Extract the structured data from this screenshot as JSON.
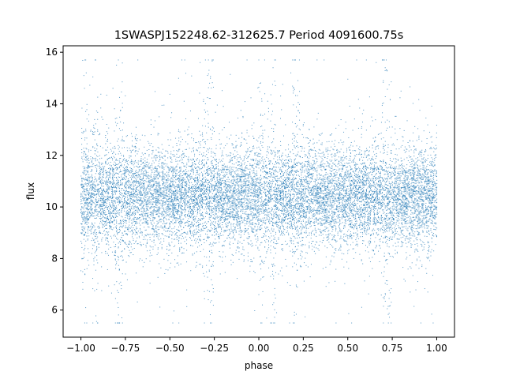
{
  "chart_data": {
    "type": "scatter",
    "title": "1SWASPJ152248.62-312625.7 Period 4091600.75s",
    "xlabel": "phase",
    "ylabel": "flux",
    "xlim": [
      -1.1,
      1.1
    ],
    "ylim": [
      4.95,
      16.25
    ],
    "xticks": [
      -1.0,
      -0.75,
      -0.5,
      -0.25,
      0.0,
      0.25,
      0.5,
      0.75,
      1.0
    ],
    "xtick_labels": [
      "−1.00",
      "−0.75",
      "−0.50",
      "−0.25",
      "0.00",
      "0.25",
      "0.50",
      "0.75",
      "1.00"
    ],
    "yticks": [
      6,
      8,
      10,
      12,
      14,
      16
    ],
    "ytick_labels": [
      "6",
      "8",
      "10",
      "12",
      "14",
      "16"
    ],
    "grid": false,
    "legend": "none",
    "marker_color": "#1f77b4",
    "series": [
      {
        "name": "",
        "description_of_density": "dense band of points",
        "x_range": [
          -1.0,
          1.0
        ],
        "y_median": 10.4,
        "y_typical_range": [
          8.5,
          12.3
        ],
        "y_extreme_range": [
          5.5,
          15.7
        ],
        "repeat_period_in_phase": 1.0,
        "flare_phases": [
          -0.98,
          -0.92,
          -0.8,
          -0.78,
          -0.3,
          -0.27,
          0.02,
          0.08,
          0.2,
          0.22,
          0.7,
          0.73
        ],
        "values": [
          [
            -0.98,
            14.6
          ],
          [
            -0.97,
            15.2
          ],
          [
            -0.95,
            9.1
          ],
          [
            -0.92,
            15.7
          ],
          [
            -0.9,
            12.8
          ],
          [
            -0.86,
            8.8
          ],
          [
            -0.82,
            14.6
          ],
          [
            -0.8,
            15.5
          ],
          [
            -0.79,
            6.1
          ],
          [
            -0.77,
            5.7
          ],
          [
            -0.74,
            12.3
          ],
          [
            -0.68,
            15.7
          ],
          [
            -0.6,
            11.4
          ],
          [
            -0.5,
            10.9
          ],
          [
            -0.42,
            14.1
          ],
          [
            -0.33,
            15.6
          ],
          [
            -0.3,
            14.0
          ],
          [
            -0.28,
            15.3
          ],
          [
            -0.26,
            13.1
          ],
          [
            -0.2,
            10.2
          ],
          [
            -0.1,
            9.9
          ],
          [
            -0.05,
            7.5
          ],
          [
            0.0,
            15.7
          ],
          [
            0.02,
            6.2
          ],
          [
            0.05,
            14.1
          ],
          [
            0.08,
            15.4
          ],
          [
            0.1,
            5.9
          ],
          [
            0.18,
            15.2
          ],
          [
            0.2,
            5.8
          ],
          [
            0.22,
            14.9
          ],
          [
            0.25,
            13.2
          ],
          [
            0.35,
            10.6
          ],
          [
            0.45,
            11.1
          ],
          [
            0.52,
            12.5
          ],
          [
            0.58,
            9.4
          ],
          [
            0.66,
            15.6
          ],
          [
            0.7,
            14.9
          ],
          [
            0.72,
            15.3
          ],
          [
            0.75,
            12.4
          ],
          [
            0.82,
            10.4
          ],
          [
            0.9,
            9.8
          ],
          [
            0.95,
            6.7
          ],
          [
            0.98,
            5.5
          ],
          [
            1.0,
            10.7
          ]
        ]
      }
    ]
  }
}
